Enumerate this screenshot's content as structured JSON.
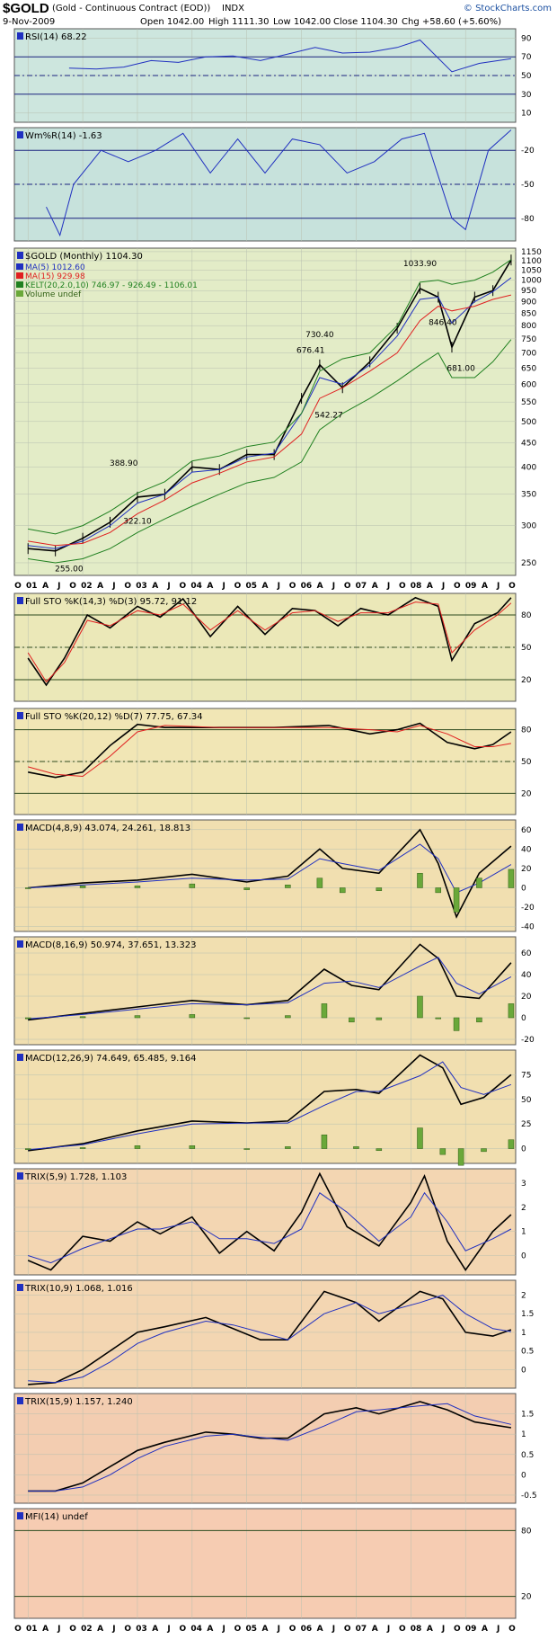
{
  "header": {
    "symbol": "$GOLD",
    "name": "(Gold - Continuous Contract (EOD))",
    "exchange": "INDX",
    "date": "9-Nov-2009",
    "open": "Open 1042.00",
    "high": "High 1111.30",
    "low": "Low 1042.00",
    "close": "Close 1104.30",
    "change": "Chg +58.60 (+5.60%)",
    "brand": "© StockCharts.com"
  },
  "colors": {
    "rsi_bg": "#cde6de",
    "wmr_bg": "#c7e2dc",
    "price_bg": "#e3ecc7",
    "sto_bg": "#ebe8b8",
    "sto2_bg": "#f1e6b5",
    "macd_bg": "#f1dfb0",
    "trix_bg": "#f3d6b2",
    "trix3_bg": "#f3cdb1",
    "mfi_bg": "#f6ccb2",
    "black_line": "#000000",
    "red_line": "#e02020",
    "blue_line": "#2030c0",
    "green_line": "#208020",
    "hist_green": "#6aa83a"
  },
  "chart_data": [
    {
      "type": "line",
      "title": "RSI(14) 68.22",
      "yticks": [
        90,
        70,
        50,
        30,
        10
      ],
      "ylim": [
        0,
        100
      ],
      "reference_lines": [
        70,
        50,
        30
      ],
      "x": [
        "2001-10",
        "2002-04",
        "2002-10",
        "2003-04",
        "2003-10",
        "2004-04",
        "2004-10",
        "2005-04",
        "2005-10",
        "2006-04",
        "2006-10",
        "2007-04",
        "2007-10",
        "2008-03",
        "2008-10",
        "2009-04",
        "2009-11"
      ],
      "series": [
        {
          "name": "RSI(14)",
          "values": [
            58,
            57,
            59,
            66,
            64,
            70,
            71,
            66,
            73,
            80,
            74,
            75,
            80,
            88,
            54,
            63,
            68
          ]
        }
      ]
    },
    {
      "type": "line",
      "title": "Wm%R(14) -1.63",
      "yticks": [
        -20,
        -50,
        -80
      ],
      "ylim": [
        -100,
        0
      ],
      "reference_lines": [
        -20,
        -50,
        -80
      ],
      "x": [
        "2001-05",
        "2001-08",
        "2001-11",
        "2002-05",
        "2002-11",
        "2003-05",
        "2003-11",
        "2004-05",
        "2004-11",
        "2005-05",
        "2005-11",
        "2006-05",
        "2006-11",
        "2007-05",
        "2007-11",
        "2008-04",
        "2008-10",
        "2009-01",
        "2009-06",
        "2009-11"
      ],
      "series": [
        {
          "name": "Wm%R(14)",
          "values": [
            -70,
            -95,
            -50,
            -20,
            -30,
            -20,
            -5,
            -40,
            -10,
            -40,
            -10,
            -15,
            -40,
            -30,
            -10,
            -5,
            -80,
            -90,
            -20,
            -2
          ]
        }
      ]
    },
    {
      "type": "line",
      "title": "$GOLD (Monthly) 1104.30",
      "legend": [
        "MA(5) 1012.60",
        "MA(15) 929.98",
        "KELT(20,2.0,10) 746.97 - 926.49 - 1106.01",
        "Volume undef"
      ],
      "yticks": [
        1150,
        1100,
        1050,
        1000,
        950,
        900,
        850,
        800,
        750,
        700,
        650,
        600,
        550,
        500,
        450,
        400,
        350,
        300,
        250
      ],
      "ylim": [
        235,
        1170
      ],
      "yscale": "log",
      "xticks": [
        "O",
        "01",
        "A",
        "J",
        "O",
        "02",
        "A",
        "J",
        "O",
        "03",
        "A",
        "J",
        "O",
        "04",
        "A",
        "J",
        "O",
        "05",
        "A",
        "J",
        "O",
        "06",
        "A",
        "J",
        "O",
        "07",
        "A",
        "J",
        "O",
        "08",
        "A",
        "J",
        "O",
        "09",
        "A",
        "J",
        "O"
      ],
      "annotations": [
        "255.00",
        "322.10",
        "388.90",
        "542.27",
        "676.41",
        "730.40",
        "1033.90",
        "846.40",
        "681.00"
      ],
      "x": [
        "2001-01",
        "2001-07",
        "2002-01",
        "2002-07",
        "2003-01",
        "2003-07",
        "2004-01",
        "2004-07",
        "2005-01",
        "2005-07",
        "2006-01",
        "2006-05",
        "2006-10",
        "2007-04",
        "2007-10",
        "2008-03",
        "2008-07",
        "2008-10",
        "2009-03",
        "2009-07",
        "2009-11"
      ],
      "series": [
        {
          "name": "$GOLD",
          "values": [
            268,
            265,
            282,
            305,
            345,
            350,
            400,
            395,
            425,
            425,
            560,
            660,
            590,
            670,
            790,
            960,
            920,
            720,
            920,
            950,
            1104
          ]
        },
        {
          "name": "MA(5)",
          "values": [
            272,
            268,
            278,
            300,
            335,
            350,
            390,
            395,
            420,
            428,
            520,
            620,
            600,
            660,
            760,
            910,
            920,
            810,
            900,
            945,
            1012
          ]
        },
        {
          "name": "MA(15)",
          "values": [
            278,
            272,
            275,
            290,
            318,
            340,
            370,
            388,
            410,
            420,
            470,
            560,
            590,
            640,
            700,
            820,
            880,
            860,
            880,
            910,
            930
          ]
        },
        {
          "name": "KELT upper",
          "values": [
            295,
            288,
            300,
            322,
            352,
            372,
            412,
            422,
            442,
            452,
            520,
            640,
            680,
            700,
            800,
            990,
            1000,
            980,
            1000,
            1040,
            1106
          ]
        },
        {
          "name": "KELT lower",
          "values": [
            255,
            250,
            255,
            268,
            290,
            310,
            330,
            350,
            370,
            380,
            410,
            480,
            520,
            560,
            610,
            660,
            700,
            620,
            620,
            670,
            747
          ]
        }
      ]
    },
    {
      "type": "line",
      "title": "Full STO %K(14,3) %D(3) 95.72, 91.12",
      "yticks": [
        80,
        50,
        20
      ],
      "ylim": [
        0,
        100
      ],
      "reference_lines": [
        80,
        50,
        20
      ],
      "x": [
        "2001-01",
        "2001-05",
        "2001-09",
        "2002-02",
        "2002-07",
        "2003-01",
        "2003-06",
        "2003-11",
        "2004-05",
        "2004-11",
        "2005-05",
        "2005-11",
        "2006-04",
        "2006-09",
        "2007-02",
        "2007-08",
        "2008-02",
        "2008-07",
        "2008-10",
        "2009-03",
        "2009-08",
        "2009-11"
      ],
      "series": [
        {
          "name": "%K",
          "values": [
            40,
            15,
            40,
            80,
            68,
            88,
            78,
            95,
            60,
            88,
            62,
            86,
            84,
            70,
            86,
            80,
            96,
            88,
            38,
            72,
            82,
            96
          ]
        },
        {
          "name": "%D",
          "values": [
            45,
            18,
            36,
            75,
            70,
            84,
            80,
            90,
            66,
            84,
            66,
            82,
            84,
            74,
            82,
            82,
            92,
            90,
            45,
            66,
            80,
            91
          ]
        }
      ]
    },
    {
      "type": "line",
      "title": "Full STO %K(20,12) %D(7) 77.75, 67.34",
      "yticks": [
        80,
        50,
        20
      ],
      "ylim": [
        0,
        100
      ],
      "reference_lines": [
        80,
        50,
        20
      ],
      "x": [
        "2001-01",
        "2001-07",
        "2002-01",
        "2002-07",
        "2003-01",
        "2003-07",
        "2004-07",
        "2005-07",
        "2006-07",
        "2007-04",
        "2007-10",
        "2008-03",
        "2008-09",
        "2009-03",
        "2009-07",
        "2009-11"
      ],
      "series": [
        {
          "name": "%K",
          "values": [
            40,
            35,
            40,
            65,
            85,
            82,
            82,
            82,
            84,
            76,
            80,
            86,
            68,
            62,
            66,
            78
          ]
        },
        {
          "name": "%D",
          "values": [
            45,
            38,
            36,
            55,
            78,
            84,
            82,
            82,
            82,
            80,
            78,
            84,
            76,
            64,
            64,
            67
          ]
        }
      ]
    },
    {
      "type": "line",
      "title": "MACD(4,8,9) 43.074, 24.261, 18.813",
      "yticks": [
        60,
        40,
        20,
        0,
        -20,
        -40
      ],
      "ylim": [
        -45,
        70
      ],
      "x": [
        "2001-01",
        "2002-01",
        "2003-01",
        "2004-01",
        "2005-01",
        "2005-10",
        "2006-05",
        "2006-10",
        "2007-06",
        "2008-03",
        "2008-07",
        "2008-11",
        "2009-04",
        "2009-11"
      ],
      "series": [
        {
          "name": "MACD",
          "values": [
            0,
            5,
            8,
            14,
            6,
            12,
            40,
            20,
            15,
            60,
            25,
            -30,
            15,
            43
          ]
        },
        {
          "name": "Signal",
          "values": [
            0,
            3,
            6,
            10,
            8,
            9,
            30,
            25,
            18,
            45,
            30,
            -5,
            5,
            24
          ]
        },
        {
          "name": "Histogram",
          "values": [
            0,
            2,
            2,
            4,
            -2,
            3,
            10,
            -5,
            -3,
            15,
            -5,
            -25,
            10,
            19
          ]
        }
      ]
    },
    {
      "type": "line",
      "title": "MACD(8,16,9) 50.974, 37.651, 13.323",
      "yticks": [
        60,
        40,
        20,
        0,
        -20
      ],
      "ylim": [
        -25,
        75
      ],
      "x": [
        "2001-01",
        "2002-01",
        "2003-01",
        "2004-01",
        "2005-01",
        "2005-10",
        "2006-06",
        "2006-12",
        "2007-06",
        "2008-03",
        "2008-07",
        "2008-11",
        "2009-04",
        "2009-11"
      ],
      "series": [
        {
          "name": "MACD",
          "values": [
            -2,
            4,
            10,
            16,
            12,
            16,
            45,
            30,
            26,
            68,
            55,
            20,
            18,
            51
          ]
        },
        {
          "name": "Signal",
          "values": [
            -1,
            3,
            8,
            13,
            12,
            14,
            32,
            34,
            28,
            48,
            56,
            32,
            22,
            38
          ]
        },
        {
          "name": "Histogram",
          "values": [
            -1,
            1,
            2,
            3,
            0,
            2,
            13,
            -4,
            -2,
            20,
            -1,
            -12,
            -4,
            13
          ]
        }
      ]
    },
    {
      "type": "line",
      "title": "MACD(12,26,9) 74.649, 65.485, 9.164",
      "yticks": [
        75,
        50,
        25,
        0
      ],
      "ylim": [
        -15,
        100
      ],
      "x": [
        "2001-01",
        "2002-01",
        "2003-01",
        "2004-01",
        "2005-01",
        "2005-10",
        "2006-06",
        "2007-01",
        "2007-06",
        "2008-03",
        "2008-08",
        "2008-12",
        "2009-05",
        "2009-11"
      ],
      "series": [
        {
          "name": "MACD",
          "values": [
            -2,
            5,
            18,
            28,
            26,
            28,
            58,
            60,
            56,
            95,
            82,
            45,
            52,
            75
          ]
        },
        {
          "name": "Signal",
          "values": [
            -1,
            4,
            15,
            25,
            26,
            26,
            44,
            58,
            58,
            74,
            88,
            62,
            55,
            65
          ]
        },
        {
          "name": "Histogram",
          "values": [
            -1,
            1,
            3,
            3,
            0,
            2,
            14,
            2,
            -2,
            21,
            -6,
            -17,
            -3,
            9
          ]
        }
      ]
    },
    {
      "type": "line",
      "title": "TRIX(5,9) 1.728, 1.103",
      "yticks": [
        3,
        2,
        1,
        0
      ],
      "ylim": [
        -0.8,
        3.6
      ],
      "x": [
        "2001-01",
        "2001-06",
        "2002-01",
        "2002-07",
        "2003-01",
        "2003-06",
        "2004-01",
        "2004-07",
        "2005-01",
        "2005-07",
        "2006-01",
        "2006-05",
        "2006-11",
        "2007-06",
        "2008-01",
        "2008-04",
        "2008-09",
        "2009-01",
        "2009-07",
        "2009-11"
      ],
      "series": [
        {
          "name": "TRIX",
          "values": [
            -0.2,
            -0.6,
            0.8,
            0.6,
            1.4,
            0.9,
            1.6,
            0.1,
            1.0,
            0.2,
            1.8,
            3.4,
            1.2,
            0.4,
            2.2,
            3.3,
            0.6,
            -0.6,
            1.0,
            1.7
          ]
        },
        {
          "name": "Signal",
          "values": [
            0,
            -0.3,
            0.3,
            0.7,
            1.1,
            1.1,
            1.4,
            0.7,
            0.7,
            0.5,
            1.1,
            2.6,
            1.8,
            0.6,
            1.6,
            2.6,
            1.4,
            0.2,
            0.7,
            1.1
          ]
        }
      ]
    },
    {
      "type": "line",
      "title": "TRIX(10,9) 1.068, 1.016",
      "yticks": [
        2.0,
        1.5,
        1.0,
        0.5,
        0.0
      ],
      "ylim": [
        -0.5,
        2.4
      ],
      "x": [
        "2001-01",
        "2001-07",
        "2002-01",
        "2002-07",
        "2003-01",
        "2003-07",
        "2004-04",
        "2004-10",
        "2005-04",
        "2005-10",
        "2006-06",
        "2007-01",
        "2007-06",
        "2008-03",
        "2008-08",
        "2009-01",
        "2009-07",
        "2009-11"
      ],
      "series": [
        {
          "name": "TRIX",
          "values": [
            -0.4,
            -0.35,
            0.0,
            0.5,
            1.0,
            1.15,
            1.4,
            1.1,
            0.8,
            0.8,
            2.1,
            1.8,
            1.3,
            2.1,
            1.9,
            1.0,
            0.9,
            1.07
          ]
        },
        {
          "name": "Signal",
          "values": [
            -0.3,
            -0.35,
            -0.2,
            0.2,
            0.7,
            1.0,
            1.3,
            1.2,
            1.0,
            0.8,
            1.5,
            1.8,
            1.5,
            1.8,
            2.0,
            1.5,
            1.1,
            1.02
          ]
        }
      ]
    },
    {
      "type": "line",
      "title": "TRIX(15,9) 1.157, 1.240",
      "yticks": [
        1.5,
        1.0,
        0.5,
        0.0,
        -0.5
      ],
      "ylim": [
        -0.7,
        2.0
      ],
      "x": [
        "2001-01",
        "2001-07",
        "2002-01",
        "2002-07",
        "2003-01",
        "2003-07",
        "2004-04",
        "2004-10",
        "2005-04",
        "2005-10",
        "2006-06",
        "2007-01",
        "2007-06",
        "2008-03",
        "2008-09",
        "2009-03",
        "2009-11"
      ],
      "series": [
        {
          "name": "TRIX",
          "values": [
            -0.4,
            -0.4,
            -0.2,
            0.2,
            0.6,
            0.8,
            1.05,
            1.0,
            0.9,
            0.9,
            1.5,
            1.65,
            1.5,
            1.8,
            1.6,
            1.3,
            1.16
          ]
        },
        {
          "name": "Signal",
          "values": [
            -0.4,
            -0.4,
            -0.3,
            0.0,
            0.4,
            0.7,
            0.95,
            1.0,
            0.92,
            0.85,
            1.2,
            1.55,
            1.6,
            1.7,
            1.75,
            1.45,
            1.24
          ]
        }
      ]
    },
    {
      "type": "line",
      "title": "MFI(14) undef",
      "yticks": [
        80,
        20
      ],
      "ylim": [
        0,
        100
      ],
      "reference_lines": [
        80,
        20
      ],
      "xticks": [
        "O",
        "01",
        "A",
        "J",
        "O",
        "02",
        "A",
        "J",
        "O",
        "03",
        "A",
        "J",
        "O",
        "04",
        "A",
        "J",
        "O",
        "05",
        "A",
        "J",
        "O",
        "06",
        "A",
        "J",
        "O",
        "07",
        "A",
        "J",
        "O",
        "08",
        "A",
        "J",
        "O",
        "09",
        "A",
        "J",
        "O"
      ],
      "series": []
    }
  ]
}
